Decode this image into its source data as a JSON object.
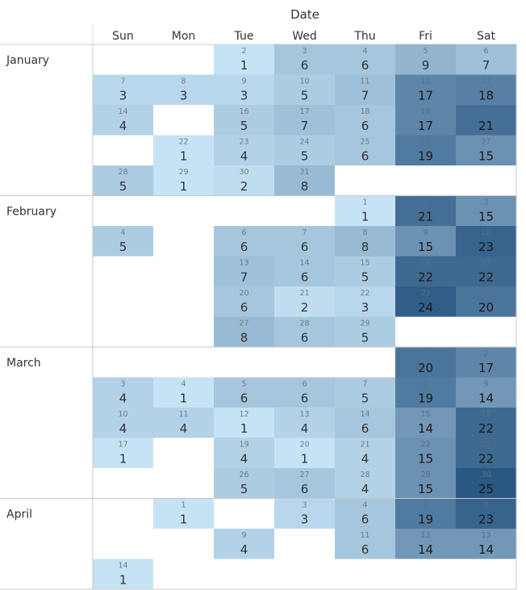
{
  "chart_data": {
    "type": "heatmap",
    "title": "Date",
    "weekdays": [
      "Sun",
      "Mon",
      "Tue",
      "Wed",
      "Thu",
      "Fri",
      "Sat"
    ],
    "color_scale": {
      "low": "#c6e3f5",
      "high": "#2a5783",
      "min": 1,
      "max": 25
    },
    "months": [
      {
        "name": "January",
        "weeks": [
          [
            null,
            null,
            {
              "d": 2,
              "v": 1
            },
            {
              "d": 3,
              "v": 6
            },
            {
              "d": 4,
              "v": 6
            },
            {
              "d": 5,
              "v": 9
            },
            {
              "d": 6,
              "v": 7
            }
          ],
          [
            {
              "d": 7,
              "v": 3
            },
            {
              "d": 8,
              "v": 3
            },
            {
              "d": 9,
              "v": 3
            },
            {
              "d": 10,
              "v": 5
            },
            {
              "d": 11,
              "v": 7
            },
            {
              "d": 12,
              "v": 17
            },
            {
              "d": 13,
              "v": 18
            }
          ],
          [
            {
              "d": 14,
              "v": 4
            },
            null,
            {
              "d": 16,
              "v": 5
            },
            {
              "d": 17,
              "v": 7
            },
            {
              "d": 18,
              "v": 6
            },
            {
              "d": 19,
              "v": 17
            },
            {
              "d": 20,
              "v": 21
            }
          ],
          [
            null,
            {
              "d": 22,
              "v": 1
            },
            {
              "d": 23,
              "v": 4
            },
            {
              "d": 24,
              "v": 5
            },
            {
              "d": 25,
              "v": 6
            },
            {
              "d": 26,
              "v": 19
            },
            {
              "d": 27,
              "v": 15
            }
          ],
          [
            {
              "d": 28,
              "v": 5
            },
            {
              "d": 29,
              "v": 1
            },
            {
              "d": 30,
              "v": 2
            },
            {
              "d": 31,
              "v": 8
            },
            null,
            null,
            null
          ]
        ]
      },
      {
        "name": "February",
        "weeks": [
          [
            null,
            null,
            null,
            null,
            {
              "d": 1,
              "v": 1
            },
            {
              "d": 2,
              "v": 21
            },
            {
              "d": 3,
              "v": 15
            }
          ],
          [
            {
              "d": 4,
              "v": 5
            },
            null,
            {
              "d": 6,
              "v": 6
            },
            {
              "d": 7,
              "v": 6
            },
            {
              "d": 8,
              "v": 8
            },
            {
              "d": 9,
              "v": 15
            },
            {
              "d": 10,
              "v": 23
            }
          ],
          [
            null,
            null,
            {
              "d": 13,
              "v": 7
            },
            {
              "d": 14,
              "v": 6
            },
            {
              "d": 15,
              "v": 5
            },
            {
              "d": 16,
              "v": 22
            },
            {
              "d": 17,
              "v": 22
            }
          ],
          [
            null,
            null,
            {
              "d": 20,
              "v": 6
            },
            {
              "d": 21,
              "v": 2
            },
            {
              "d": 22,
              "v": 3
            },
            {
              "d": 23,
              "v": 24
            },
            {
              "d": 24,
              "v": 20
            }
          ],
          [
            null,
            null,
            {
              "d": 27,
              "v": 8
            },
            {
              "d": 28,
              "v": 6
            },
            {
              "d": 29,
              "v": 5
            },
            null,
            null
          ]
        ]
      },
      {
        "name": "March",
        "weeks": [
          [
            null,
            null,
            null,
            null,
            null,
            {
              "d": 1,
              "v": 20
            },
            {
              "d": 2,
              "v": 17
            }
          ],
          [
            {
              "d": 3,
              "v": 4
            },
            {
              "d": 4,
              "v": 1
            },
            {
              "d": 5,
              "v": 6
            },
            {
              "d": 6,
              "v": 6
            },
            {
              "d": 7,
              "v": 5
            },
            {
              "d": 8,
              "v": 19
            },
            {
              "d": 9,
              "v": 14
            }
          ],
          [
            {
              "d": 10,
              "v": 4
            },
            {
              "d": 11,
              "v": 4
            },
            {
              "d": 12,
              "v": 1
            },
            {
              "d": 13,
              "v": 4
            },
            {
              "d": 14,
              "v": 6
            },
            {
              "d": 15,
              "v": 14
            },
            {
              "d": 16,
              "v": 22
            }
          ],
          [
            {
              "d": 17,
              "v": 1
            },
            null,
            {
              "d": 19,
              "v": 4
            },
            {
              "d": 20,
              "v": 1
            },
            {
              "d": 21,
              "v": 4
            },
            {
              "d": 22,
              "v": 15
            },
            {
              "d": 23,
              "v": 22
            }
          ],
          [
            null,
            null,
            {
              "d": 26,
              "v": 5
            },
            {
              "d": 27,
              "v": 6
            },
            {
              "d": 28,
              "v": 4
            },
            {
              "d": 29,
              "v": 15
            },
            {
              "d": 30,
              "v": 25
            }
          ]
        ]
      },
      {
        "name": "April",
        "weeks": [
          [
            null,
            {
              "d": 1,
              "v": 1
            },
            null,
            {
              "d": 3,
              "v": 3
            },
            {
              "d": 4,
              "v": 6
            },
            {
              "d": 5,
              "v": 19
            },
            {
              "d": 6,
              "v": 23
            }
          ],
          [
            null,
            null,
            {
              "d": 9,
              "v": 4
            },
            null,
            {
              "d": 11,
              "v": 6
            },
            {
              "d": 12,
              "v": 14
            },
            {
              "d": 13,
              "v": 14
            }
          ],
          [
            {
              "d": 14,
              "v": 1
            },
            null,
            null,
            null,
            null,
            null,
            null
          ]
        ]
      }
    ]
  }
}
